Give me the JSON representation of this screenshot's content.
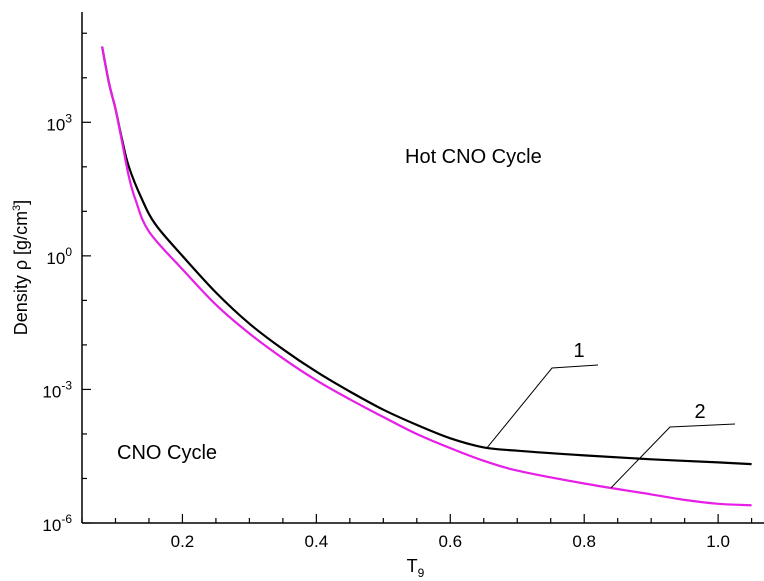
{
  "chart_data": {
    "type": "line",
    "title": "",
    "xlabel": "T",
    "xlabel_subscript": "9",
    "ylabel": "Density ρ [g/cm",
    "ylabel_superscript": "3",
    "ylabel_suffix": "]",
    "xlim": [
      0.05,
      1.07
    ],
    "ylim": [
      1e-06,
      300000
    ],
    "yscale": "log",
    "grid": false,
    "x_ticks": [
      {
        "value": 0.2,
        "label": "0.2"
      },
      {
        "value": 0.4,
        "label": "0.4"
      },
      {
        "value": 0.6,
        "label": "0.6"
      },
      {
        "value": 0.8,
        "label": "0.8"
      },
      {
        "value": 1.0,
        "label": "1.0"
      }
    ],
    "y_ticks": [
      {
        "value": 1e-06,
        "base": "10",
        "exp": "-6"
      },
      {
        "value": 0.001,
        "base": "10",
        "exp": "-3"
      },
      {
        "value": 1,
        "base": "10",
        "exp": "0"
      },
      {
        "value": 1000,
        "base": "10",
        "exp": "3"
      }
    ],
    "region_labels": [
      {
        "text": "Hot CNO Cycle"
      },
      {
        "text": "CNO Cycle"
      }
    ],
    "series": [
      {
        "name": "1",
        "color": "#000000",
        "x": [
          0.08,
          0.09,
          0.1,
          0.11,
          0.12,
          0.14,
          0.16,
          0.2,
          0.25,
          0.3,
          0.35,
          0.4,
          0.45,
          0.5,
          0.55,
          0.6,
          0.65,
          0.7,
          0.8,
          0.9,
          1.0,
          1.05
        ],
        "y": [
          50000,
          8000,
          2000,
          400,
          100,
          18,
          5,
          1,
          0.15,
          0.03,
          0.008,
          0.0025,
          0.0009,
          0.00035,
          0.00016,
          8e-05,
          5e-05,
          4.2e-05,
          3.3e-05,
          2.7e-05,
          2.3e-05,
          2.1e-05
        ]
      },
      {
        "name": "2",
        "color": "#e61ee6",
        "x": [
          0.08,
          0.09,
          0.1,
          0.11,
          0.12,
          0.13,
          0.15,
          0.2,
          0.25,
          0.3,
          0.35,
          0.4,
          0.45,
          0.5,
          0.55,
          0.6,
          0.65,
          0.7,
          0.8,
          0.9,
          0.95,
          1.0,
          1.05
        ],
        "y": [
          50000,
          8000,
          2000,
          350,
          60,
          18,
          3.5,
          0.5,
          0.08,
          0.018,
          0.005,
          0.0016,
          0.0006,
          0.00024,
          0.0001,
          4.8e-05,
          2.5e-05,
          1.5e-05,
          7.7e-06,
          4.4e-06,
          3.3e-06,
          2.7e-06,
          2.5e-06
        ]
      }
    ],
    "curve_labels": [
      {
        "text": "1",
        "series": "1",
        "anchor_x": 0.655
      },
      {
        "text": "2",
        "series": "2",
        "anchor_x": 0.84
      }
    ]
  }
}
